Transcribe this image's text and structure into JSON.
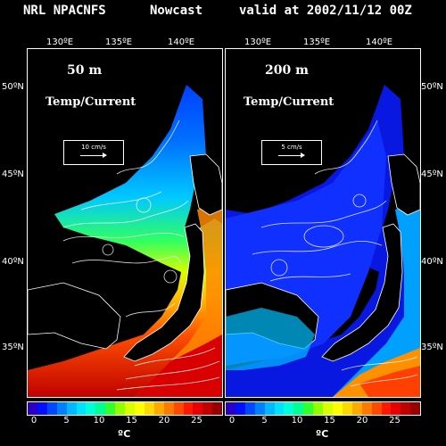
{
  "title": {
    "model": "NRL NPACNFS",
    "type": "Nowcast",
    "valid": "valid at 2002/11/12 00Z"
  },
  "longitudes": [
    "130ºE",
    "135ºE",
    "140ºE"
  ],
  "latitudes": [
    "50ºN",
    "45ºN",
    "40ºN",
    "35ºN"
  ],
  "panels": [
    {
      "depth": "50 m",
      "variable": "Temp/Current",
      "vector_scale": "10 cm/s"
    },
    {
      "depth": "200 m",
      "variable": "Temp/Current",
      "vector_scale": "5 cm/s"
    }
  ],
  "colorbar": {
    "ticks": [
      "0",
      "5",
      "10",
      "15",
      "20",
      "25"
    ],
    "unit": "ºC",
    "colors": [
      "#2a00c8",
      "#0010ff",
      "#0048ff",
      "#0080ff",
      "#00b8ff",
      "#00e0ff",
      "#00ffd8",
      "#00ff90",
      "#30ff30",
      "#90ff00",
      "#d8ff00",
      "#ffff00",
      "#ffd800",
      "#ffa800",
      "#ff7800",
      "#ff4800",
      "#ff1800",
      "#e80000",
      "#c00000",
      "#980000"
    ]
  }
}
